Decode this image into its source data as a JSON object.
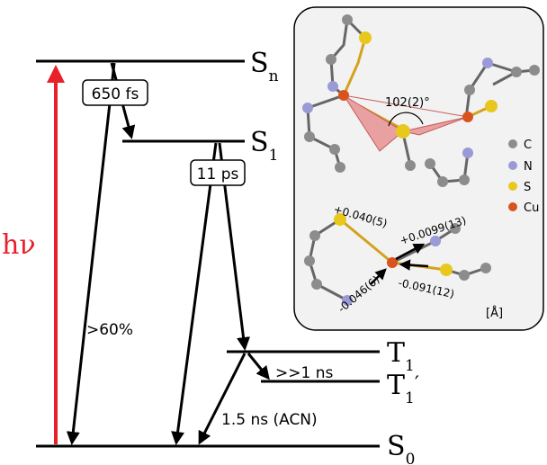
{
  "states": {
    "sn": {
      "main": "S",
      "sub": "n"
    },
    "s1": {
      "main": "S",
      "sub": "1"
    },
    "t1": {
      "main": "T",
      "sub": "1"
    },
    "t1p": {
      "main": "T",
      "sub": "1",
      "prime": "′"
    },
    "s0": {
      "main": "S",
      "sub": "0"
    }
  },
  "excitation_label": "hν",
  "timescales": {
    "sn_to_s1": "650 fs",
    "s1_to_t1": "11 ps",
    "sn_to_s0_yield": ">60%",
    "t1_to_t1p": ">>1 ns",
    "t1_to_s0": "1.5 ns (ACN)"
  },
  "inset": {
    "angle_label": "102(2)°",
    "legend": [
      {
        "label": "C",
        "color": "#8c8c8c"
      },
      {
        "label": "N",
        "color": "#9a9ad6"
      },
      {
        "label": "S",
        "color": "#e8c81c"
      },
      {
        "label": "Cu",
        "color": "#d9531e"
      }
    ],
    "displacements": [
      "+0.040(5)",
      "+0.0099(13)",
      "-0.091(12)",
      "-0.046(6)"
    ],
    "unit": "[Å]"
  },
  "colors": {
    "excitation": "#e8202a",
    "inset_bg": "#f2f2f2",
    "triangle": "#e8a0a0"
  }
}
